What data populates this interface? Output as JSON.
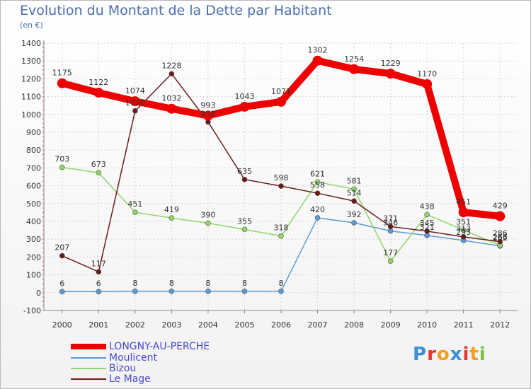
{
  "title": "Evolution du Montant de la Dette par Habitant",
  "subtitle": "(en €)",
  "logo": {
    "letters": [
      "P",
      "r",
      "o",
      "x",
      "i",
      "t",
      "i"
    ],
    "colors": [
      "#3a8fd8",
      "#e8352d",
      "#f0a020",
      "#3a8fd8",
      "#e8352d",
      "#f0a020",
      "#7ac043"
    ]
  },
  "chart_data": {
    "type": "line",
    "title": "Evolution du Montant de la Dette par Habitant",
    "ylabel": "(en €)",
    "xlabel": "",
    "ylim": [
      -100,
      1400
    ],
    "y_ticks": [
      -100,
      0,
      100,
      200,
      300,
      400,
      500,
      600,
      700,
      800,
      900,
      1000,
      1100,
      1200,
      1300,
      1400
    ],
    "categories": [
      "2000",
      "2001",
      "2002",
      "2003",
      "2004",
      "2005",
      "2006",
      "2007",
      "2008",
      "2009",
      "2010",
      "2011",
      "2012"
    ],
    "series": [
      {
        "name": "LONGNY-AU-PERCHE",
        "color": "#ee0000",
        "values": [
          1175,
          1122,
          1074,
          1032,
          993,
          1043,
          1071,
          1302,
          1254,
          1229,
          1170,
          451,
          429
        ],
        "labels": [
          "1175",
          "1122",
          "1074",
          "1032",
          "993",
          "1043",
          "1071",
          "1302",
          "1254",
          "1229",
          "1170",
          "451",
          "429"
        ]
      },
      {
        "name": "Moulicent",
        "color": "#5b9bd5",
        "values": [
          6,
          6,
          8,
          8,
          8,
          8,
          8,
          420,
          392,
          346,
          321,
          293,
          262
        ],
        "labels": [
          "6",
          "6",
          "8",
          "8",
          "8",
          "8",
          "8",
          "420",
          "392",
          "346",
          "321",
          "293",
          "262"
        ]
      },
      {
        "name": "Bizou",
        "color": "#8fd66a",
        "values": [
          703,
          673,
          451,
          419,
          390,
          355,
          318,
          621,
          581,
          177,
          438,
          351,
          266
        ],
        "labels": [
          "703",
          "673",
          "451",
          "419",
          "390",
          "355",
          "318",
          "621",
          "581",
          "177",
          "438",
          "351",
          "266"
        ]
      },
      {
        "name": "Le Mage",
        "color": "#6b1a1a",
        "values": [
          207,
          117,
          1020,
          1228,
          958,
          635,
          598,
          558,
          514,
          371,
          345,
          313,
          286
        ],
        "labels": [
          "207",
          "117",
          "1020",
          "1228",
          "958",
          "635",
          "598",
          "558",
          "514",
          "371",
          "345",
          "313",
          "286"
        ]
      }
    ],
    "grid": true,
    "legend": "bottom-left"
  }
}
